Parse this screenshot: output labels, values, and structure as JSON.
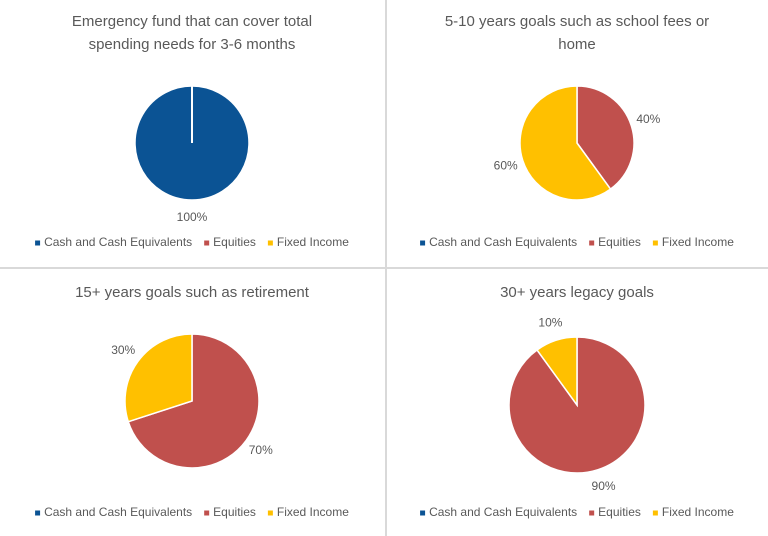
{
  "chart_data": [
    {
      "type": "pie",
      "title": "Emergency fund that can cover total spending needs for 3-6 months",
      "categories": [
        "Cash and Cash Equivalents",
        "Equities",
        "Fixed Income"
      ],
      "values": [
        100,
        0,
        0
      ],
      "value_labels": [
        "100%",
        null,
        null
      ],
      "colors": [
        "#0b5394",
        "#c0504d",
        "#ffc000"
      ],
      "legend": "bottom"
    },
    {
      "type": "pie",
      "title": "5-10 years goals such as school fees or home",
      "categories": [
        "Cash and Cash Equivalents",
        "Equities",
        "Fixed Income"
      ],
      "values": [
        0,
        40,
        60
      ],
      "value_labels": [
        null,
        "40%",
        "60%"
      ],
      "colors": [
        "#0b5394",
        "#c0504d",
        "#ffc000"
      ],
      "legend": "bottom"
    },
    {
      "type": "pie",
      "title": "15+ years goals such as retirement",
      "categories": [
        "Cash and Cash Equivalents",
        "Equities",
        "Fixed Income"
      ],
      "values": [
        0,
        70,
        30
      ],
      "value_labels": [
        null,
        "70%",
        "30%"
      ],
      "colors": [
        "#0b5394",
        "#c0504d",
        "#ffc000"
      ],
      "legend": "bottom"
    },
    {
      "type": "pie",
      "title": "30+ years legacy goals",
      "categories": [
        "Cash and Cash Equivalents",
        "Equities",
        "Fixed Income"
      ],
      "values": [
        0,
        90,
        10
      ],
      "value_labels": [
        null,
        "90%",
        "10%"
      ],
      "colors": [
        "#0b5394",
        "#c0504d",
        "#ffc000"
      ],
      "legend": "bottom"
    }
  ]
}
